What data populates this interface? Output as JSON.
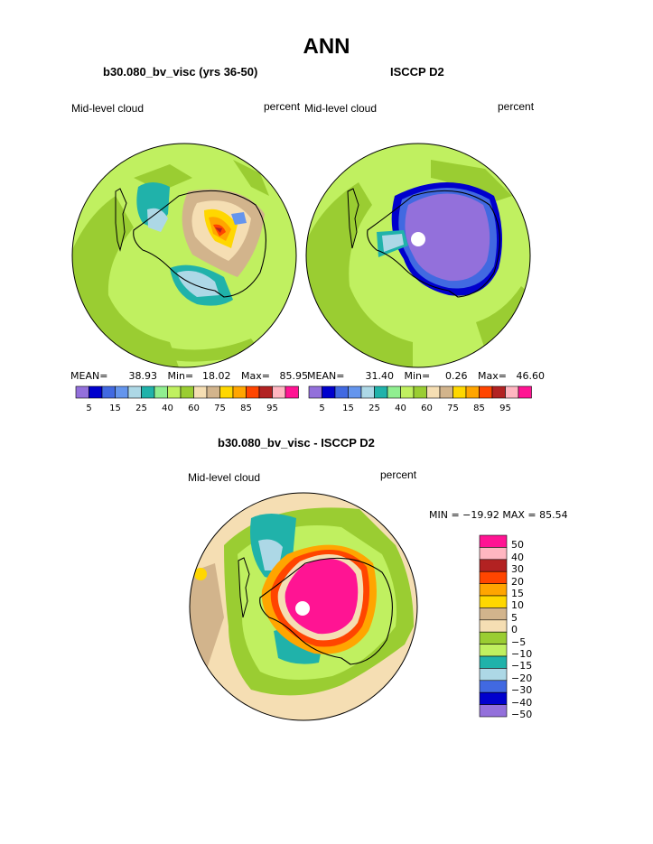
{
  "page_title": "ANN",
  "panels": {
    "model": {
      "title": "b30.080_bv_visc (yrs 36-50)",
      "left_label": "Mid-level cloud",
      "right_label": "percent",
      "stats": {
        "mean_label": "MEAN=",
        "mean": "38.93",
        "min_label": "Min=",
        "min": "18.02",
        "max_label": "Max=",
        "max": "85.95"
      }
    },
    "obs": {
      "title": "ISCCP D2",
      "left_label": "Mid-level cloud",
      "right_label": "percent",
      "stats": {
        "mean_label": "MEAN=",
        "mean": "31.40",
        "min_label": "Min=",
        "min": "0.26",
        "max_label": "Max=",
        "max": "46.60"
      }
    },
    "diff": {
      "title": "b30.080_bv_visc - ISCCP D2",
      "left_label": "Mid-level cloud",
      "right_label": "percent",
      "minmax": "MIN = −19.92  MAX =  85.54"
    }
  },
  "colorbar_top": {
    "colors": [
      "#9370db",
      "#0000cd",
      "#4169e1",
      "#6495ed",
      "#add8e6",
      "#20b2aa",
      "#90ee90",
      "#c0f060",
      "#9acd32",
      "#f5deb3",
      "#d2b48c",
      "#ffd700",
      "#ffa500",
      "#ff4500",
      "#b22222",
      "#ffb6c1",
      "#ff1493"
    ],
    "tick_labels": [
      "5",
      "15",
      "25",
      "40",
      "60",
      "75",
      "85",
      "95"
    ]
  },
  "colorbar_diff": {
    "colors": [
      "#ff1493",
      "#ffb6c1",
      "#b22222",
      "#ff4500",
      "#ffa500",
      "#ffd700",
      "#d2b48c",
      "#f5deb3",
      "#9acd32",
      "#c0f060",
      "#20b2aa",
      "#add8e6",
      "#4169e1",
      "#0000cd",
      "#9370db"
    ],
    "tick_labels": [
      "50",
      "40",
      "30",
      "20",
      "15",
      "10",
      "5",
      "0",
      "−5",
      "−10",
      "−15",
      "−20",
      "−30",
      "−40",
      "−50"
    ]
  },
  "map_colors": {
    "background": "#c0f060",
    "green": "#9acd32",
    "teal": "#20b2aa",
    "lightblue": "#add8e6",
    "tan": "#d2b48c",
    "wheat": "#f5deb3",
    "orange": "#ffa500",
    "red": "#ff4500",
    "darkred": "#b22222",
    "yellow": "#ffd700",
    "purple": "#9370db",
    "blue": "#4169e1",
    "darkblue": "#0000cd",
    "pink": "#ff1493",
    "lightpink": "#ffb6c1"
  }
}
